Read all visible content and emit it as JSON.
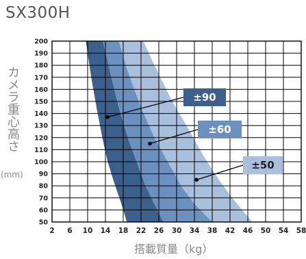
{
  "title": "SX300H",
  "ylabel": "カメラ重心高さ",
  "yunit": "(mm)",
  "xlabel": "搭載質量（kg）",
  "colors": {
    "band_dark": "#3c5f8c",
    "band_mid": "#6d91bf",
    "band_light": "#a9bfdc",
    "grid": "#000000"
  },
  "chart_data": {
    "type": "area",
    "title": "SX300H",
    "xlabel": "搭載質量（kg）",
    "ylabel": "カメラ重心高さ (mm)",
    "xlim": [
      2,
      58
    ],
    "ylim": [
      50,
      200
    ],
    "x_ticks": [
      "2",
      "6",
      "10",
      "14",
      "18",
      "22",
      "26",
      "30",
      "34",
      "38",
      "42",
      "46",
      "50",
      "54",
      "58"
    ],
    "y_ticks": [
      "50",
      "60",
      "70",
      "80",
      "90",
      "100",
      "110",
      "120",
      "130",
      "140",
      "150",
      "160",
      "170",
      "180",
      "190",
      "200"
    ],
    "grid": true,
    "series": [
      {
        "name": "±90",
        "lower": [
          [
            9.6,
            200
          ],
          [
            10.8,
            170
          ],
          [
            12,
            145
          ],
          [
            13.3,
            120
          ],
          [
            14.5,
            100
          ],
          [
            16.2,
            80
          ],
          [
            17.6,
            65
          ],
          [
            18.8,
            50
          ]
        ],
        "upper": [
          [
            13.4,
            200
          ],
          [
            15,
            175
          ],
          [
            17,
            145
          ],
          [
            19,
            120
          ],
          [
            21,
            100
          ],
          [
            23,
            80
          ],
          [
            25,
            65
          ],
          [
            27,
            50
          ]
        ]
      },
      {
        "name": "±60",
        "lower": [
          [
            13.4,
            200
          ],
          [
            15,
            175
          ],
          [
            17,
            145
          ],
          [
            19,
            120
          ],
          [
            21,
            100
          ],
          [
            23,
            80
          ],
          [
            25,
            65
          ],
          [
            27,
            50
          ]
        ],
        "upper": [
          [
            17,
            200
          ],
          [
            19,
            175
          ],
          [
            22,
            145
          ],
          [
            25,
            120
          ],
          [
            28,
            100
          ],
          [
            31,
            80
          ],
          [
            34,
            65
          ],
          [
            38,
            50
          ]
        ]
      },
      {
        "name": "±50",
        "lower": [
          [
            17,
            200
          ],
          [
            19,
            175
          ],
          [
            22,
            145
          ],
          [
            25,
            120
          ],
          [
            28,
            100
          ],
          [
            31,
            80
          ],
          [
            34,
            65
          ],
          [
            38,
            50
          ]
        ],
        "upper": [
          [
            22.5,
            200
          ],
          [
            25,
            180
          ],
          [
            29,
            150
          ],
          [
            33,
            125
          ],
          [
            36,
            105
          ],
          [
            39.5,
            85
          ],
          [
            42.5,
            70
          ],
          [
            47,
            50
          ]
        ]
      }
    ],
    "annotations": [
      {
        "text": "±90",
        "point": [
          14.5,
          137
        ],
        "box_color": "#3c5f8c",
        "text_color": "#ffffff"
      },
      {
        "text": "±60",
        "point": [
          24,
          115
        ],
        "box_color": "#6d91bf",
        "text_color": "#ffffff"
      },
      {
        "text": "±50",
        "point": [
          34.5,
          85
        ],
        "box_color": "#a9bfdc",
        "text_color": "#222222"
      }
    ]
  }
}
